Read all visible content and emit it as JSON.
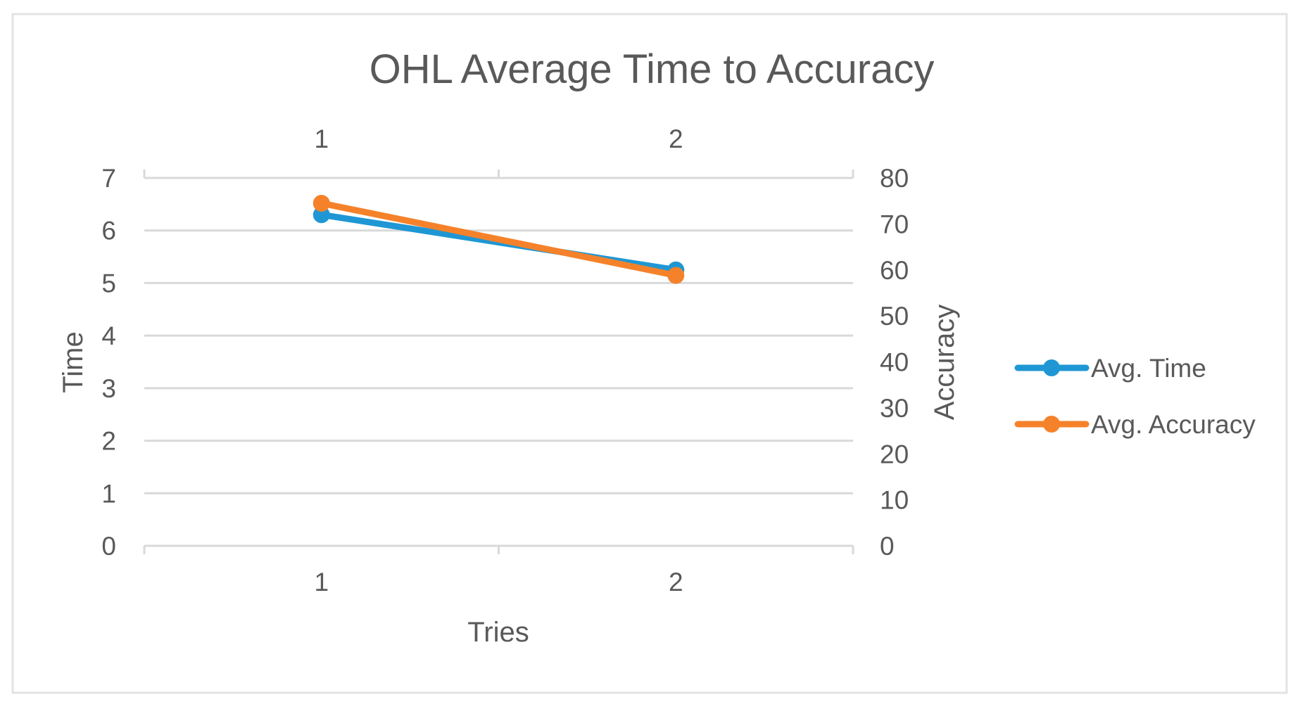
{
  "chart_data": {
    "type": "line",
    "title": "OHL Average Time to Accuracy",
    "xlabel": "Tries",
    "ylabel_left": "Time",
    "ylabel_right": "Accuracy",
    "categories": [
      "1",
      "2"
    ],
    "y_left_ticks": [
      "0",
      "1",
      "2",
      "3",
      "4",
      "5",
      "6",
      "7"
    ],
    "y_right_ticks": [
      "0",
      "10",
      "20",
      "30",
      "40",
      "50",
      "60",
      "70",
      "80"
    ],
    "y_left_range": [
      0,
      7
    ],
    "y_right_range": [
      0,
      80
    ],
    "grid": true,
    "legend_position": "right",
    "series": [
      {
        "name": "Avg. Time",
        "axis": "left",
        "color": "#1f97d4",
        "values": [
          6.3,
          5.25
        ]
      },
      {
        "name": "Avg. Accuracy",
        "axis": "right",
        "color": "#f5822a",
        "values": [
          74.5,
          58.8
        ]
      }
    ]
  },
  "colors": {
    "grid": "#d9d9d9",
    "text": "#595959",
    "border": "#e3e3e3"
  }
}
